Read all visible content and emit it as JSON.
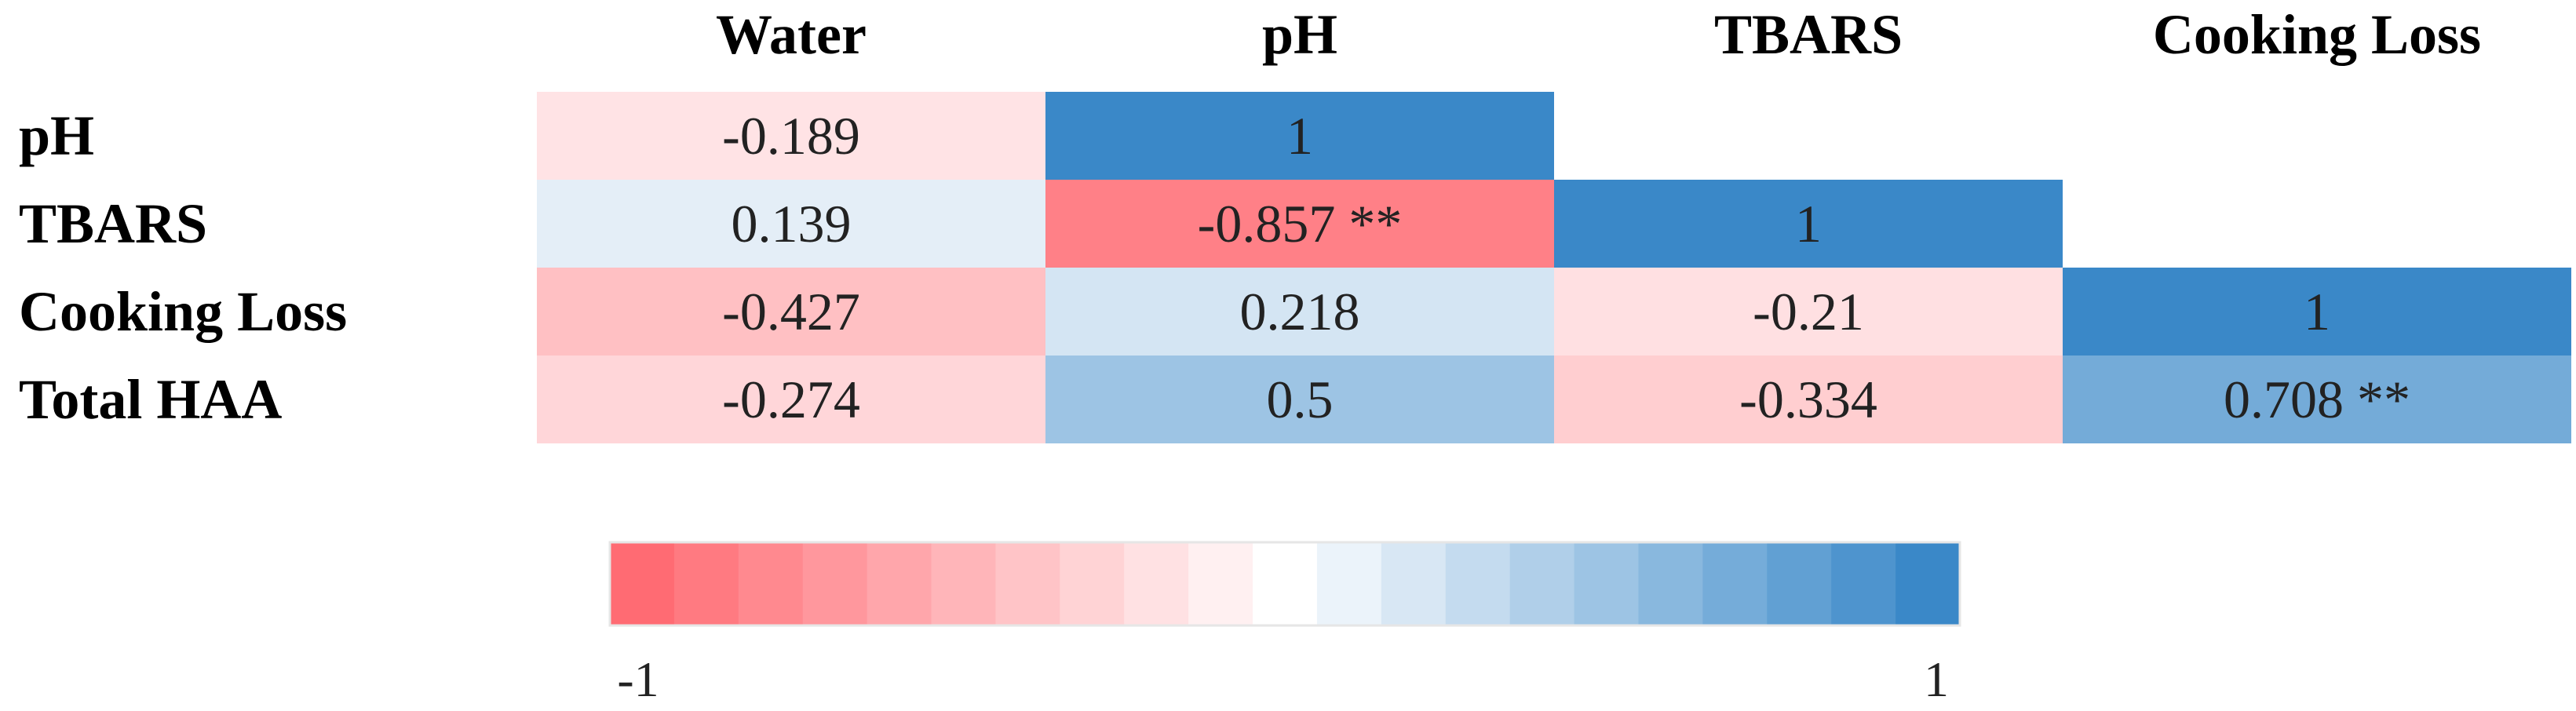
{
  "chart_data": {
    "type": "heatmap",
    "columns": [
      "Water",
      "pH",
      "TBARS",
      "Cooking Loss"
    ],
    "rows": [
      "pH",
      "TBARS",
      "Cooking Loss",
      "Total HAA"
    ],
    "cells": [
      [
        {
          "value": -0.189,
          "text": "-0.189"
        },
        {
          "value": 1,
          "text": "1"
        },
        null,
        null
      ],
      [
        {
          "value": 0.139,
          "text": "0.139"
        },
        {
          "value": -0.857,
          "text": "-0.857 **"
        },
        {
          "value": 1,
          "text": "1"
        },
        null
      ],
      [
        {
          "value": -0.427,
          "text": "-0.427"
        },
        {
          "value": 0.218,
          "text": "0.218"
        },
        {
          "value": -0.21,
          "text": "-0.21"
        },
        {
          "value": 1,
          "text": "1"
        }
      ],
      [
        {
          "value": -0.274,
          "text": "-0.274"
        },
        {
          "value": 0.5,
          "text": "0.5"
        },
        {
          "value": -0.334,
          "text": "-0.334"
        },
        {
          "value": 0.708,
          "text": "0.708 **"
        }
      ]
    ],
    "scale": {
      "min": -1,
      "max": 1,
      "min_label": "-1",
      "max_label": "1",
      "steps": 21,
      "negative_color": "#FF6B73",
      "neutral_color": "#FFFFFF",
      "positive_color": "#3A88C8"
    }
  }
}
